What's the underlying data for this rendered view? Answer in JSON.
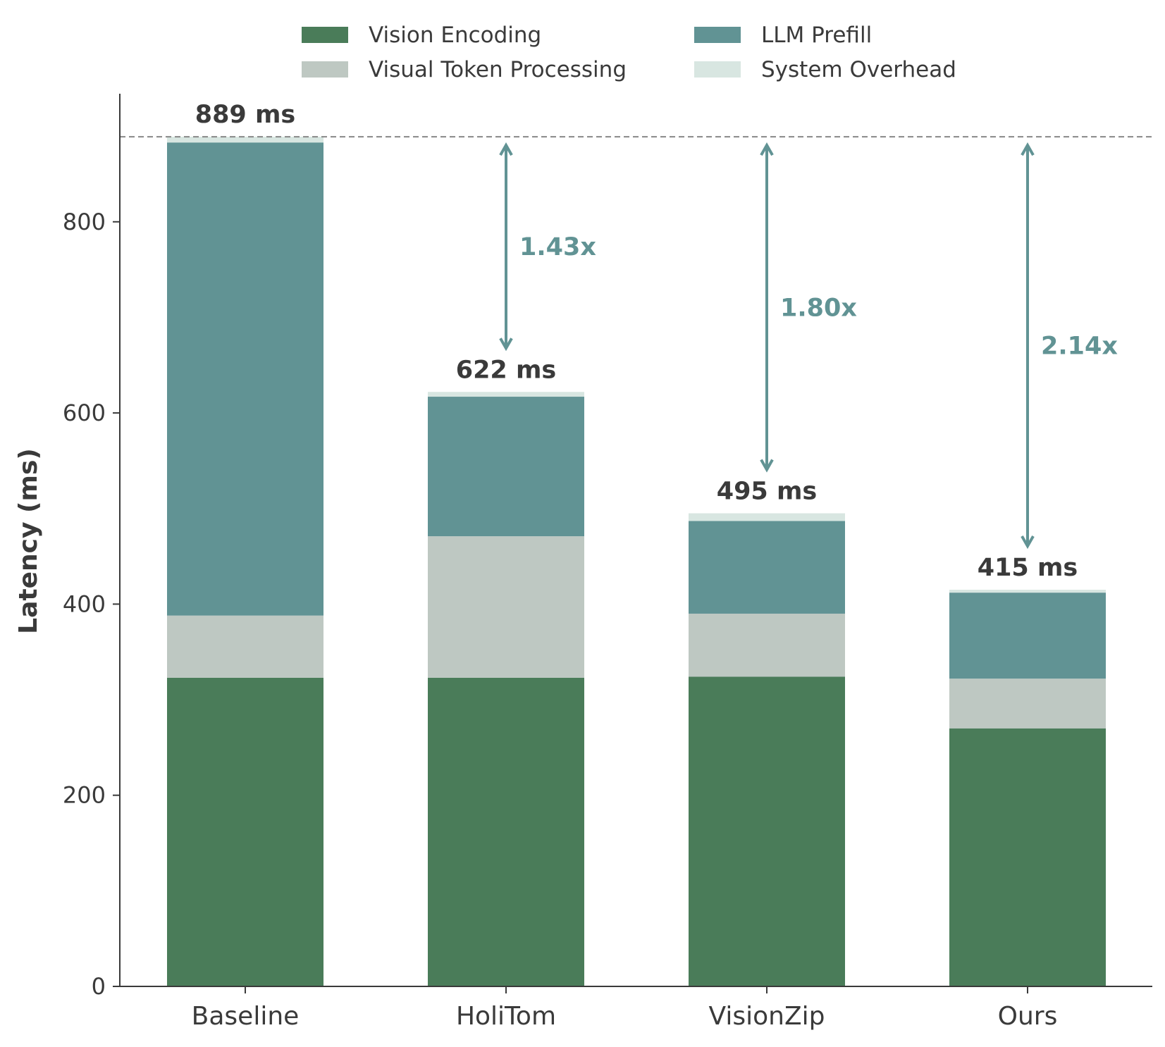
{
  "chart_data": {
    "type": "bar",
    "stacked": true,
    "categories": [
      "Baseline",
      "HoliTom",
      "VisionZip",
      "Ours"
    ],
    "series": [
      {
        "name": "Vision Encoding",
        "color": "#4a7c59",
        "values": [
          323,
          323,
          324,
          270
        ]
      },
      {
        "name": "Visual Token Processing",
        "color": "#bec8c2",
        "values": [
          65,
          148,
          66,
          52
        ]
      },
      {
        "name": "LLM Prefill",
        "color": "#619394",
        "values": [
          495,
          146,
          97,
          90
        ]
      },
      {
        "name": "System Overhead",
        "color": "#d8e6e1",
        "values": [
          6,
          5,
          8,
          3
        ]
      }
    ],
    "totals": [
      889,
      622,
      495,
      415
    ],
    "total_labels": [
      "889 ms",
      "622 ms",
      "495 ms",
      "415 ms"
    ],
    "speedups": [
      {
        "category": "HoliTom",
        "label": "1.43x"
      },
      {
        "category": "VisionZip",
        "label": "1.80x"
      },
      {
        "category": "Ours",
        "label": "2.14x"
      }
    ],
    "reference_line": 889,
    "ylabel": "Latency (ms)",
    "xlabel": "",
    "ylim": [
      0,
      935
    ],
    "yticks": [
      0,
      200,
      400,
      600,
      800
    ],
    "grid": false,
    "legend_position": "top-center",
    "accent_color": "#619394",
    "text_color": "#3a3a3a"
  }
}
